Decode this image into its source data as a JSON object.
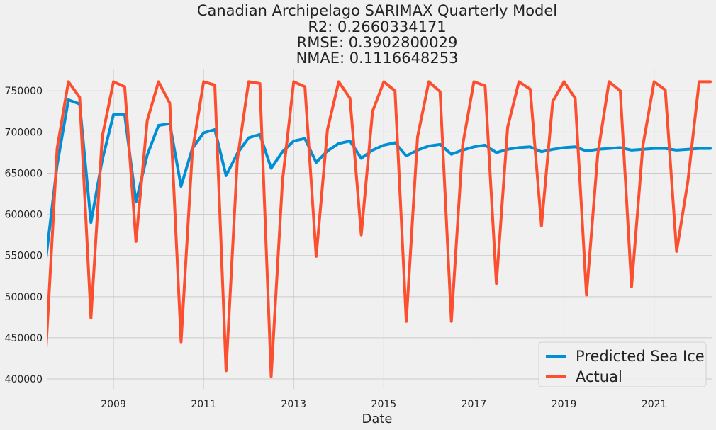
{
  "chart_data": {
    "type": "line",
    "title_lines": [
      "Canadian Archipelago SARIMAX Quarterly Model",
      "R2: 0.2660334171",
      "RMSE: 0.3902800029",
      "NMAE: 0.1116648253"
    ],
    "xlabel": "Date",
    "ylabel": "",
    "x_ticks": [
      2009,
      2011,
      2013,
      2015,
      2017,
      2019,
      2021
    ],
    "y_ticks": [
      400000,
      450000,
      500000,
      550000,
      600000,
      650000,
      700000,
      750000
    ],
    "y_tick_labels": [
      "400000",
      "450000",
      "500000",
      "550000",
      "600000",
      "650000",
      "700000",
      "750000"
    ],
    "xlim": [
      2007.52,
      2022.28
    ],
    "ylim": [
      388000,
      776000
    ],
    "grid": true,
    "legend_position": "bottom-right",
    "series": [
      {
        "name": "Predicted Sea Ice",
        "color": "#008fd5",
        "x": [
          2007.5,
          2007.75,
          2008.0,
          2008.25,
          2008.5,
          2008.75,
          2009.0,
          2009.25,
          2009.5,
          2009.75,
          2010.0,
          2010.25,
          2010.5,
          2010.75,
          2011.0,
          2011.25,
          2011.5,
          2011.75,
          2012.0,
          2012.25,
          2012.5,
          2012.75,
          2013.0,
          2013.25,
          2013.5,
          2013.75,
          2014.0,
          2014.25,
          2014.5,
          2014.75,
          2015.0,
          2015.25,
          2015.5,
          2015.75,
          2016.0,
          2016.25,
          2016.5,
          2016.75,
          2017.0,
          2017.25,
          2017.5,
          2017.75,
          2018.0,
          2018.25,
          2018.5,
          2018.75,
          2019.0,
          2019.25,
          2019.5,
          2019.75,
          2020.0,
          2020.25,
          2020.5,
          2020.75,
          2021.0,
          2021.25,
          2021.5,
          2021.75,
          2022.0,
          2022.25
        ],
        "values": [
          545000,
          660000,
          739000,
          734000,
          590000,
          666000,
          721000,
          721000,
          615000,
          672000,
          708000,
          710000,
          634000,
          680000,
          699000,
          703000,
          647000,
          674000,
          693000,
          697000,
          656000,
          676000,
          689000,
          692000,
          663000,
          677000,
          686000,
          689000,
          668000,
          678000,
          684000,
          687000,
          671000,
          678000,
          683000,
          685000,
          673000,
          678000,
          682000,
          684000,
          675000,
          679000,
          681000,
          682000,
          676000,
          679000,
          681000,
          682000,
          677000,
          679000,
          680000,
          681000,
          678000,
          679000,
          680000,
          680000,
          678000,
          679000,
          680000,
          680000
        ]
      },
      {
        "name": "Actual",
        "color": "#fc4f30",
        "x": [
          2007.5,
          2007.75,
          2008.0,
          2008.25,
          2008.5,
          2008.75,
          2009.0,
          2009.25,
          2009.5,
          2009.75,
          2010.0,
          2010.25,
          2010.5,
          2010.75,
          2011.0,
          2011.25,
          2011.5,
          2011.75,
          2012.0,
          2012.25,
          2012.5,
          2012.75,
          2013.0,
          2013.25,
          2013.5,
          2013.75,
          2014.0,
          2014.25,
          2014.5,
          2014.75,
          2015.0,
          2015.25,
          2015.5,
          2015.75,
          2016.0,
          2016.25,
          2016.5,
          2016.75,
          2017.0,
          2017.25,
          2017.5,
          2017.75,
          2018.0,
          2018.25,
          2018.5,
          2018.75,
          2019.0,
          2019.25,
          2019.5,
          2019.75,
          2020.0,
          2020.25,
          2020.5,
          2020.75,
          2021.0,
          2021.25,
          2021.5,
          2021.75,
          2022.0,
          2022.25
        ],
        "values": [
          433000,
          680000,
          761000,
          742000,
          474000,
          694000,
          761000,
          755000,
          567000,
          714000,
          761000,
          735000,
          445000,
          676000,
          761000,
          757000,
          410000,
          666000,
          761000,
          759000,
          403000,
          640000,
          761000,
          755000,
          549000,
          703000,
          761000,
          741000,
          575000,
          725000,
          761000,
          750000,
          470000,
          694000,
          761000,
          749000,
          470000,
          684000,
          761000,
          756000,
          516000,
          706000,
          761000,
          752000,
          586000,
          737000,
          761000,
          741000,
          502000,
          673000,
          761000,
          750000,
          512000,
          683000,
          761000,
          751000,
          555000,
          640000,
          761000,
          761000
        ]
      }
    ]
  }
}
